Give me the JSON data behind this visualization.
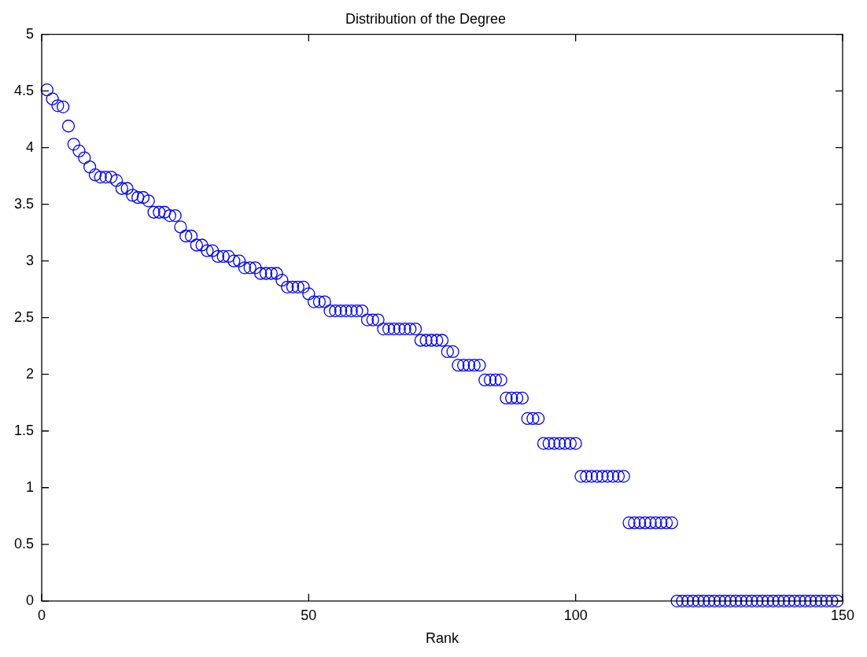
{
  "chart_data": {
    "type": "scatter",
    "title": "Distribution of the Degree",
    "xlabel": "Rank",
    "x": [
      1,
      2,
      3,
      4,
      5,
      6,
      7,
      8,
      9,
      10,
      11,
      12,
      13,
      14,
      15,
      16,
      17,
      18,
      19,
      20,
      21,
      22,
      23,
      24,
      25,
      26,
      27,
      28,
      29,
      30,
      31,
      32,
      33,
      34,
      35,
      36,
      37,
      38,
      39,
      40,
      41,
      42,
      43,
      44,
      45,
      46,
      47,
      48,
      49,
      50,
      51,
      52,
      53,
      54,
      55,
      56,
      57,
      58,
      59,
      60,
      61,
      62,
      63,
      64,
      65,
      66,
      67,
      68,
      69,
      70,
      71,
      72,
      73,
      74,
      75,
      76,
      77,
      78,
      79,
      80,
      81,
      82,
      83,
      84,
      85,
      86,
      87,
      88,
      89,
      90,
      91,
      92,
      93,
      94,
      95,
      96,
      97,
      98,
      99,
      100,
      101,
      102,
      103,
      104,
      105,
      106,
      107,
      108,
      109,
      110,
      111,
      112,
      113,
      114,
      115,
      116,
      117,
      118,
      119,
      120,
      121,
      122,
      123,
      124,
      125,
      126,
      127,
      128,
      129,
      130,
      131,
      132,
      133,
      134,
      135,
      136,
      137,
      138,
      139,
      140,
      141,
      142,
      143,
      144,
      145,
      146,
      147,
      148,
      149
    ],
    "series": [
      {
        "color": "#0000ff",
        "values": [
          4.51,
          4.43,
          4.37,
          4.36,
          4.19,
          4.03,
          3.97,
          3.91,
          3.83,
          3.76,
          3.74,
          3.74,
          3.74,
          3.71,
          3.64,
          3.64,
          3.58,
          3.56,
          3.56,
          3.53,
          3.43,
          3.43,
          3.43,
          3.4,
          3.4,
          3.3,
          3.22,
          3.22,
          3.14,
          3.14,
          3.09,
          3.09,
          3.04,
          3.04,
          3.04,
          3.0,
          3.0,
          2.94,
          2.94,
          2.94,
          2.89,
          2.89,
          2.89,
          2.89,
          2.83,
          2.77,
          2.77,
          2.77,
          2.77,
          2.71,
          2.64,
          2.64,
          2.64,
          2.56,
          2.56,
          2.56,
          2.56,
          2.56,
          2.56,
          2.56,
          2.48,
          2.48,
          2.48,
          2.4,
          2.4,
          2.4,
          2.4,
          2.4,
          2.4,
          2.4,
          2.3,
          2.3,
          2.3,
          2.3,
          2.3,
          2.2,
          2.2,
          2.08,
          2.08,
          2.08,
          2.08,
          2.08,
          1.95,
          1.95,
          1.95,
          1.95,
          1.79,
          1.79,
          1.79,
          1.79,
          1.61,
          1.61,
          1.61,
          1.39,
          1.39,
          1.39,
          1.39,
          1.39,
          1.39,
          1.39,
          1.1,
          1.1,
          1.1,
          1.1,
          1.1,
          1.1,
          1.1,
          1.1,
          1.1,
          0.69,
          0.69,
          0.69,
          0.69,
          0.69,
          0.69,
          0.69,
          0.69,
          0.69,
          0,
          0,
          0,
          0,
          0,
          0,
          0,
          0,
          0,
          0,
          0,
          0,
          0,
          0,
          0,
          0,
          0,
          0,
          0,
          0,
          0,
          0,
          0,
          0,
          0,
          0,
          0,
          0,
          0,
          0,
          0
        ]
      }
    ],
    "xlim": [
      0,
      150
    ],
    "xticks": [
      0,
      50,
      100,
      150
    ],
    "ylim": [
      0,
      5
    ],
    "yticks": [
      0,
      0.5,
      1,
      1.5,
      2,
      2.5,
      3,
      3.5,
      4,
      4.5,
      5
    ],
    "marker": "circle",
    "grid": false,
    "legend": false
  }
}
